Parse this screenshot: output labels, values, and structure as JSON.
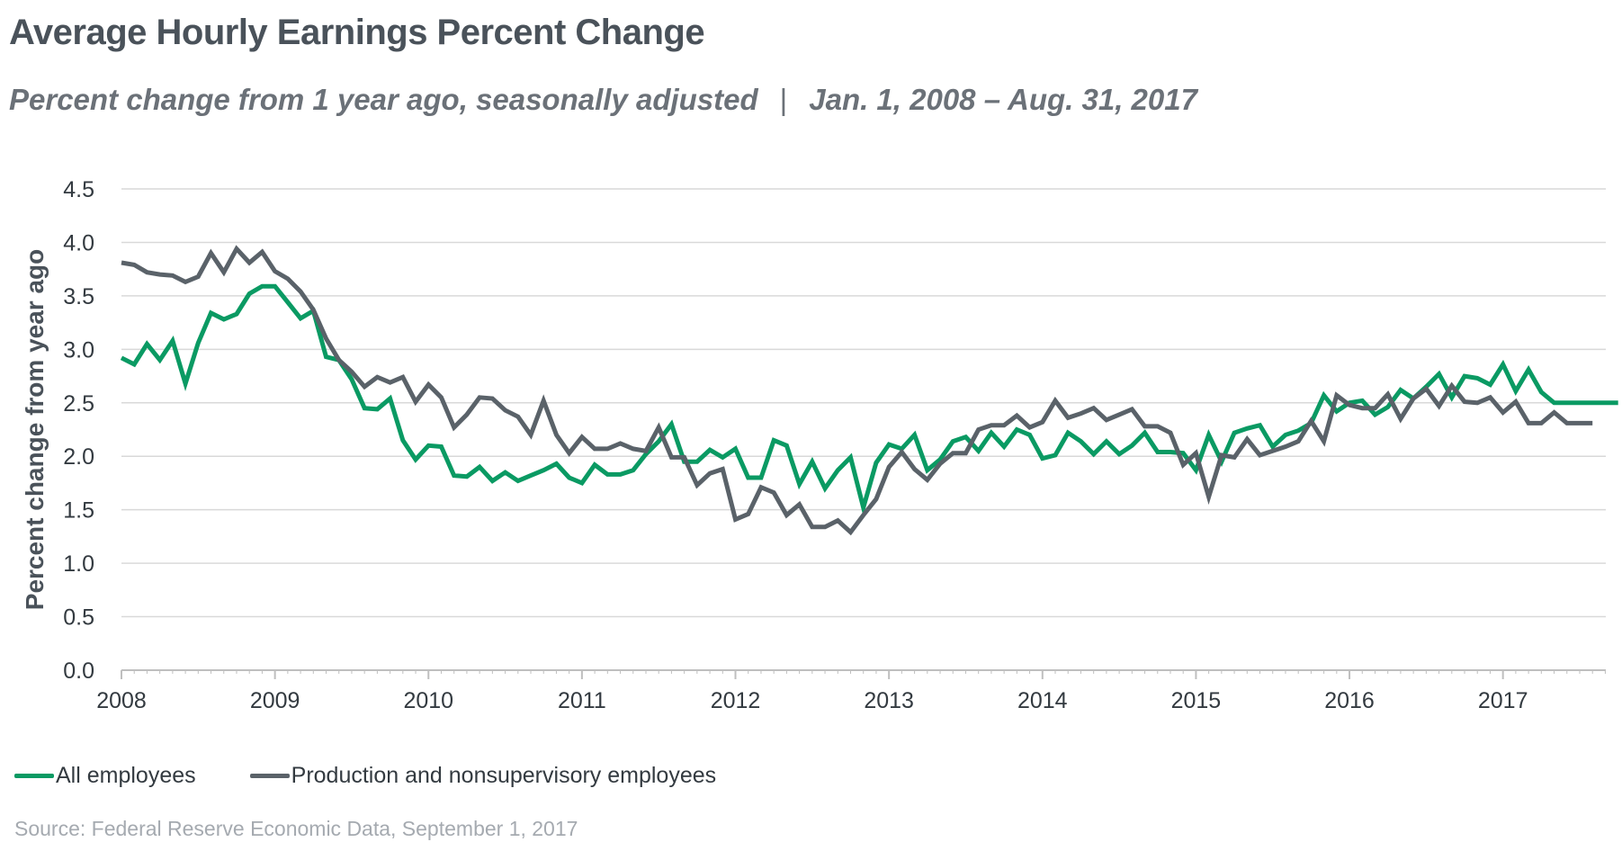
{
  "title": "Average Hourly Earnings Percent Change",
  "subtitle": {
    "left": "Percent change from 1 year ago, seasonally adjusted",
    "separator": "|",
    "right": "Jan. 1, 2008 – Aug. 31, 2017"
  },
  "source": "Source: Federal Reserve Economic Data, September 1, 2017",
  "colors": {
    "all_employees": "#0a9a63",
    "production": "#5a6269",
    "grid": "#d9d9d9",
    "axis": "#bfbfbf",
    "text": "#4a525a"
  },
  "chart_data": {
    "type": "line",
    "title": "Average Hourly Earnings Percent Change",
    "xlabel": "",
    "ylabel": "Percent change from year ago",
    "ylim": [
      0,
      4.5
    ],
    "yticks": [
      "0.0",
      "0.5",
      "1.0",
      "1.5",
      "2.0",
      "2.5",
      "3.0",
      "3.5",
      "4.0",
      "4.5"
    ],
    "xlim": [
      2008,
      2017.67
    ],
    "xticks": [
      "2008",
      "2009",
      "2010",
      "2011",
      "2012",
      "2013",
      "2014",
      "2015",
      "2016",
      "2017"
    ],
    "x_start": 2008.0,
    "x_step_months": 1,
    "grid": true,
    "legend_position": "bottom-left",
    "series": [
      {
        "name": "All employees",
        "color": "#0a9a63",
        "values": [
          2.92,
          2.86,
          3.05,
          2.9,
          3.08,
          2.68,
          3.06,
          3.34,
          3.28,
          3.33,
          3.52,
          3.59,
          3.59,
          3.44,
          3.29,
          3.36,
          2.93,
          2.9,
          2.72,
          2.45,
          2.44,
          2.54,
          2.15,
          1.97,
          2.1,
          2.09,
          1.82,
          1.81,
          1.9,
          1.77,
          1.85,
          1.77,
          1.82,
          1.87,
          1.93,
          1.8,
          1.75,
          1.92,
          1.83,
          1.83,
          1.87,
          2.02,
          2.14,
          2.3,
          1.95,
          1.95,
          2.06,
          1.99,
          2.07,
          1.8,
          1.8,
          2.15,
          2.1,
          1.74,
          1.95,
          1.7,
          1.87,
          1.99,
          1.52,
          1.94,
          2.11,
          2.07,
          2.2,
          1.87,
          1.97,
          2.14,
          2.18,
          2.05,
          2.22,
          2.09,
          2.25,
          2.2,
          1.98,
          2.01,
          2.22,
          2.14,
          2.02,
          2.14,
          2.02,
          2.1,
          2.22,
          2.04,
          2.04,
          2.03,
          1.87,
          2.2,
          1.95,
          2.22,
          2.26,
          2.29,
          2.09,
          2.2,
          2.24,
          2.31,
          2.57,
          2.42,
          2.5,
          2.52,
          2.39,
          2.46,
          2.62,
          2.54,
          2.65,
          2.77,
          2.55,
          2.75,
          2.73,
          2.67,
          2.86,
          2.61,
          2.81,
          2.6,
          2.5,
          2.5,
          2.5,
          2.5,
          2.5,
          2.5
        ]
      },
      {
        "name": "Production and nonsupervisory employees",
        "color": "#5a6269",
        "values": [
          3.81,
          3.79,
          3.72,
          3.7,
          3.69,
          3.63,
          3.68,
          3.9,
          3.72,
          3.94,
          3.81,
          3.91,
          3.73,
          3.66,
          3.54,
          3.37,
          3.1,
          2.9,
          2.79,
          2.65,
          2.74,
          2.69,
          2.74,
          2.51,
          2.67,
          2.55,
          2.27,
          2.39,
          2.55,
          2.54,
          2.43,
          2.37,
          2.2,
          2.52,
          2.2,
          2.03,
          2.18,
          2.07,
          2.07,
          2.12,
          2.07,
          2.05,
          2.27,
          1.99,
          1.99,
          1.73,
          1.84,
          1.88,
          1.41,
          1.46,
          1.71,
          1.66,
          1.45,
          1.55,
          1.34,
          1.34,
          1.4,
          1.29,
          1.45,
          1.6,
          1.9,
          2.04,
          1.88,
          1.78,
          1.93,
          2.03,
          2.03,
          2.25,
          2.29,
          2.29,
          2.38,
          2.27,
          2.32,
          2.52,
          2.36,
          2.4,
          2.45,
          2.34,
          2.39,
          2.44,
          2.28,
          2.28,
          2.22,
          1.92,
          2.03,
          1.62,
          2.01,
          1.99,
          2.16,
          2.01,
          2.05,
          2.09,
          2.14,
          2.33,
          2.14,
          2.57,
          2.48,
          2.45,
          2.45,
          2.58,
          2.35,
          2.54,
          2.63,
          2.47,
          2.66,
          2.51,
          2.5,
          2.55,
          2.41,
          2.51,
          2.31,
          2.31,
          2.41,
          2.31,
          2.31,
          2.31
        ]
      }
    ]
  }
}
